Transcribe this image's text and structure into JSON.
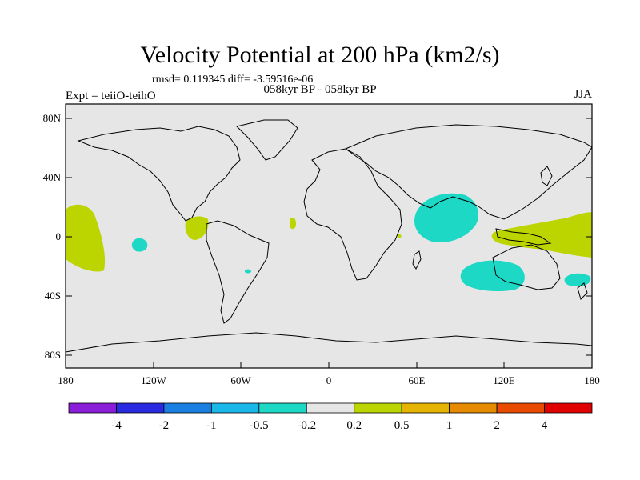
{
  "header": {
    "title": "Velocity Potential at 200 hPa (km2/s)",
    "stats": "rmsd= 0.119345  diff= -3.59516e-06",
    "left_label": "Expt = teiiO-teihO",
    "center_label": "058kyr BP - 058kyr BP",
    "right_label": "JJA"
  },
  "axes": {
    "lat_ticks": [
      "80N",
      "40N",
      "0",
      "40S",
      "80S"
    ],
    "lon_ticks": [
      "180",
      "120W",
      "60W",
      "0",
      "60E",
      "120E",
      "180"
    ]
  },
  "colorbar": {
    "colors": [
      "#8a1ed8",
      "#2a2ae0",
      "#1a7fe0",
      "#1ab8e8",
      "#1cd8c4",
      "#e6e6e6",
      "#bcd400",
      "#e4b400",
      "#e68a00",
      "#e84a00",
      "#e00000"
    ],
    "labels": [
      "-4",
      "-2",
      "-1",
      "-0.5",
      "-0.2",
      "0.2",
      "0.5",
      "1",
      "2",
      "4"
    ]
  },
  "map": {
    "background": "#e6e6e6",
    "positive_color": "#bcd400",
    "negative_color": "#1cd8c4"
  }
}
